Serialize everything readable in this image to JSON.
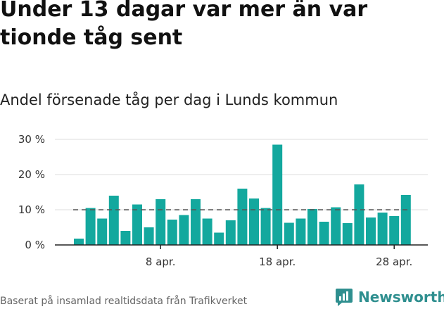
{
  "header": {
    "title": "Under 13 dagar var mer än var tionde tåg sent",
    "subtitle": "Andel försenade tåg per dag i Lunds kommun"
  },
  "footer": {
    "source": "Baserat på insamlad realtidsdata från Trafikverket"
  },
  "brand": {
    "name": "Newsworthy",
    "icon": "newsworthy-logo-icon"
  },
  "colors": {
    "bar": "#13a89e",
    "reference_line": "#555555",
    "grid": "#dddddd",
    "axis": "#222222"
  },
  "chart_data": {
    "type": "bar",
    "categories": [
      "1 apr.",
      "2 apr.",
      "3 apr.",
      "4 apr.",
      "5 apr.",
      "6 apr.",
      "7 apr.",
      "8 apr.",
      "9 apr.",
      "10 apr.",
      "11 apr.",
      "12 apr.",
      "13 apr.",
      "14 apr.",
      "15 apr.",
      "16 apr.",
      "17 apr.",
      "18 apr.",
      "19 apr.",
      "20 apr.",
      "21 apr.",
      "22 apr.",
      "23 apr.",
      "24 apr.",
      "25 apr.",
      "26 apr.",
      "27 apr.",
      "28 apr.",
      "29 apr."
    ],
    "values": [
      1.8,
      10.5,
      7.5,
      14.0,
      4.0,
      11.5,
      5.0,
      13.0,
      7.2,
      8.5,
      13.0,
      7.5,
      3.5,
      7.0,
      16.0,
      13.2,
      10.5,
      28.5,
      6.3,
      7.5,
      10.2,
      6.6,
      10.7,
      6.2,
      17.2,
      7.8,
      9.2,
      8.2,
      14.2
    ],
    "reference_value": 10,
    "ylim": [
      0,
      30
    ],
    "y_ticks": [
      {
        "value": 0,
        "label": "0 %"
      },
      {
        "value": 10,
        "label": "10 %"
      },
      {
        "value": 20,
        "label": "20 %"
      },
      {
        "value": 30,
        "label": "30 %"
      }
    ],
    "x_ticks": [
      {
        "index": 7,
        "label": "8 apr."
      },
      {
        "index": 17,
        "label": "18 apr."
      },
      {
        "index": 27,
        "label": "28 apr."
      }
    ],
    "grid": true,
    "xlabel": "",
    "ylabel": ""
  }
}
